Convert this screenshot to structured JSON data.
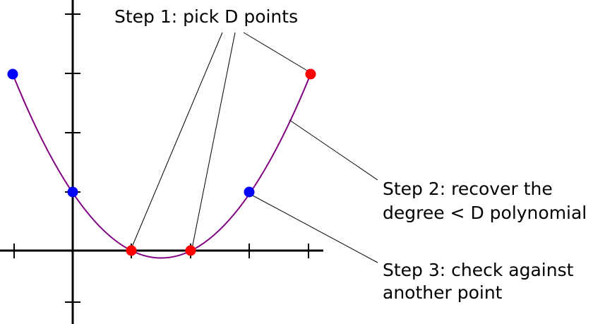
{
  "labels": {
    "step1": "Step 1: pick D points",
    "step2": [
      "Step 2: recover the",
      "degree < D polynomial"
    ],
    "step3": [
      "Step 3: check against",
      "another point"
    ]
  }
}
